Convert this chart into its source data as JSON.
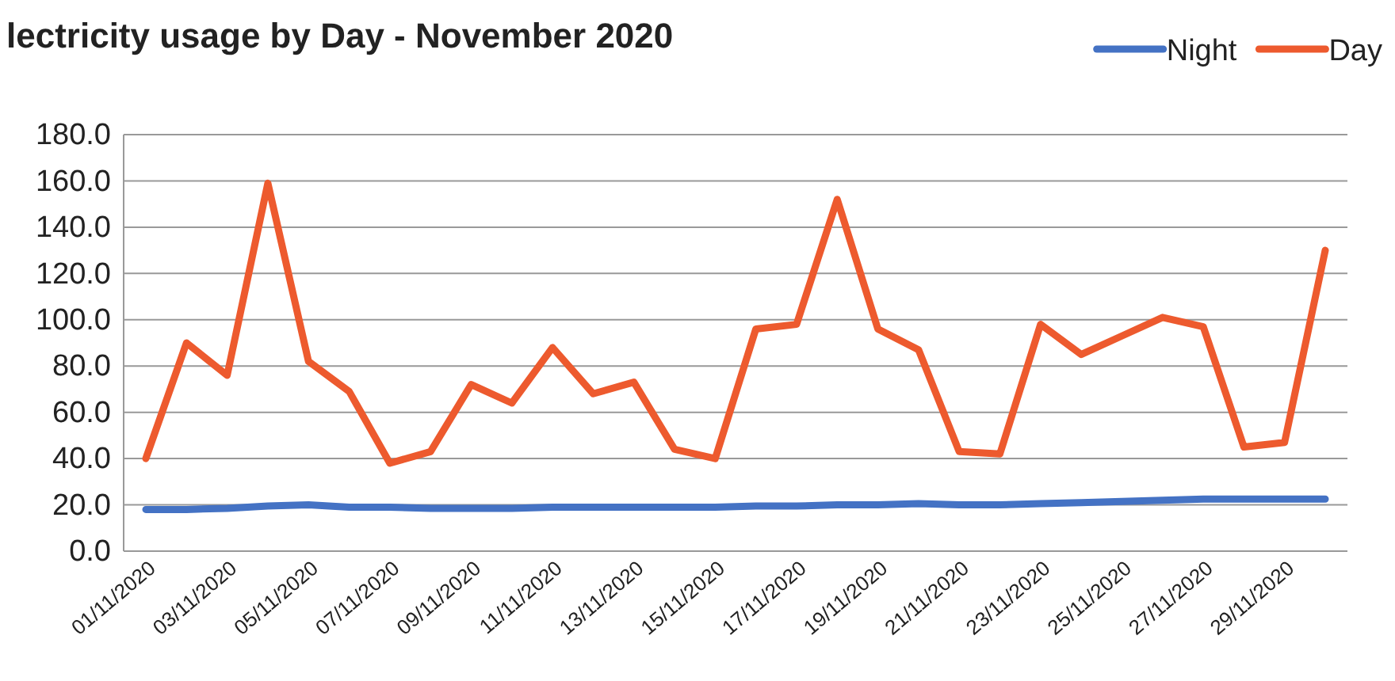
{
  "chart_data": {
    "type": "line",
    "title": "lectricity usage by Day - November 2020",
    "categories": [
      "01/11/2020",
      null,
      "03/11/2020",
      null,
      "05/11/2020",
      null,
      "07/11/2020",
      null,
      "09/11/2020",
      null,
      "11/11/2020",
      null,
      "13/11/2020",
      null,
      "15/11/2020",
      null,
      "17/11/2020",
      null,
      "19/11/2020",
      null,
      "21/11/2020",
      null,
      "23/11/2020",
      null,
      "25/11/2020",
      null,
      "27/11/2020",
      null,
      "29/11/2020",
      null
    ],
    "series": [
      {
        "name": "Night",
        "color": "#4472c4",
        "values": [
          18,
          18,
          18.5,
          19.5,
          20,
          19,
          19,
          18.5,
          18.5,
          18.5,
          19,
          19,
          19,
          19,
          19,
          19.5,
          19.5,
          20,
          20,
          20.5,
          20,
          20,
          20.5,
          21,
          21.5,
          22,
          22.5,
          22.5,
          22.5,
          22.5
        ]
      },
      {
        "name": "Day",
        "color": "#ed5a2e",
        "values": [
          40,
          90,
          76,
          159,
          82,
          69,
          38,
          43,
          72,
          64,
          88,
          68,
          73,
          44,
          40,
          96,
          98,
          152,
          96,
          87,
          43,
          42,
          98,
          85,
          93,
          101,
          97,
          45,
          47,
          130
        ]
      }
    ],
    "ylim": [
      0,
      180
    ],
    "yticks": [
      {
        "value": 0,
        "label": "0.0"
      },
      {
        "value": 20,
        "label": "20.0"
      },
      {
        "value": 40,
        "label": "40.0"
      },
      {
        "value": 60,
        "label": "60.0"
      },
      {
        "value": 80,
        "label": "80.0"
      },
      {
        "value": 100,
        "label": "100.0"
      },
      {
        "value": 120,
        "label": "120.0"
      },
      {
        "value": 140,
        "label": "140.0"
      },
      {
        "value": 160,
        "label": "160.0"
      },
      {
        "value": 180,
        "label": "180.0"
      }
    ],
    "grid": "y",
    "legend": "top right",
    "marker": "none",
    "line_style": "solid"
  }
}
